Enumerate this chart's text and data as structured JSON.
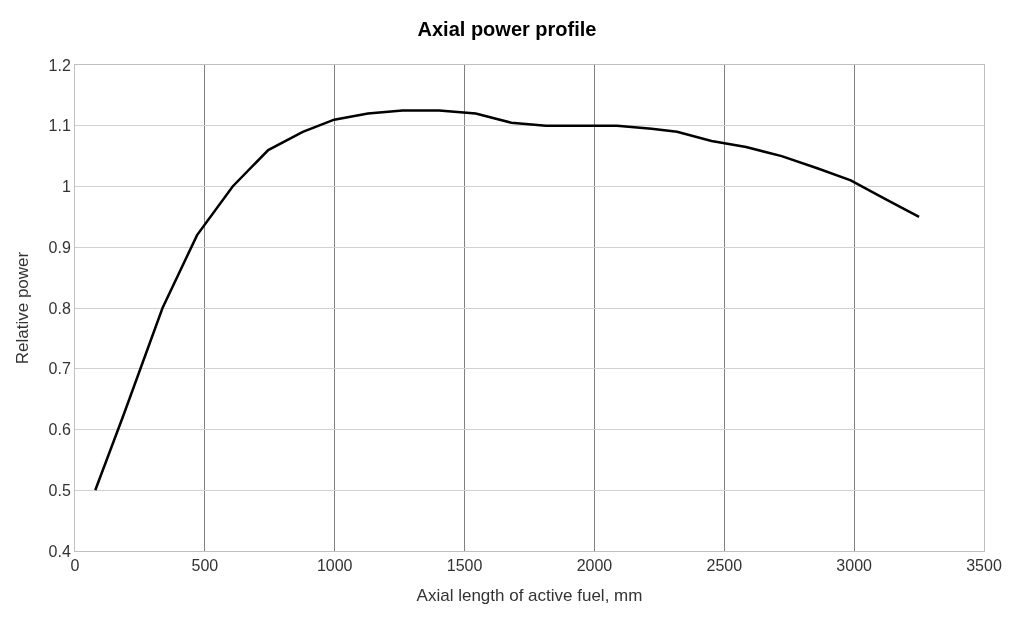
{
  "chart_data": {
    "type": "line",
    "title": "Axial power profile",
    "xlabel": "Axial length of active fuel, mm",
    "ylabel": "Relative power",
    "x": [
      78,
      188,
      337,
      470,
      607,
      744,
      877,
      998,
      1128,
      1261,
      1402,
      1543,
      1680,
      1813,
      1950,
      2087,
      2220,
      2318,
      2451,
      2584,
      2721,
      2858,
      2987,
      3117,
      3250
    ],
    "series": [
      {
        "color": "#000000",
        "values": [
          0.5,
          0.625,
          0.8,
          0.92,
          1.0,
          1.06,
          1.09,
          1.11,
          1.12,
          1.125,
          1.125,
          1.12,
          1.105,
          1.1,
          1.1,
          1.1,
          1.095,
          1.09,
          1.075,
          1.065,
          1.05,
          1.03,
          1.01,
          0.98,
          0.95
        ]
      }
    ],
    "xlim": [
      0,
      3500
    ],
    "xticks": [
      0,
      500,
      1000,
      1500,
      2000,
      2500,
      3000,
      3500
    ],
    "ylim": [
      0.4,
      1.2
    ],
    "yticks": [
      0.4,
      0.5,
      0.6,
      0.7,
      0.8,
      0.9,
      1,
      1.1,
      1.2
    ],
    "grid": true,
    "marker": "none",
    "line_style": "solid"
  }
}
